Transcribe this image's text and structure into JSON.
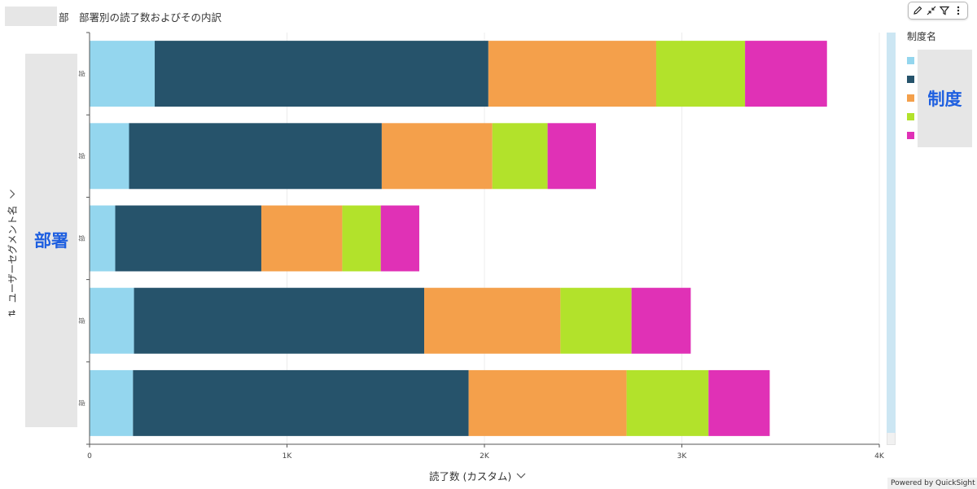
{
  "header": {
    "title": "部　部署別の読了数およびその内訳"
  },
  "toolbar": {
    "icons": [
      "pencil-icon",
      "collapse-icon",
      "filter-icon",
      "more-vertical-icon"
    ]
  },
  "y_axis": {
    "title": "ユーザーセグメント名",
    "overlay_label": "部署"
  },
  "x_axis": {
    "title": "読了数 (カスタム)"
  },
  "legend": {
    "title": "制度名",
    "overlay_label": "制度"
  },
  "footer": {
    "powered_by": "Powered by QuickSight"
  },
  "chart_data": {
    "type": "bar",
    "orientation": "horizontal",
    "stacked": true,
    "categories": [
      "部",
      "部",
      "部",
      "部",
      "部"
    ],
    "series": [
      {
        "color": "#94d6ee",
        "values": [
          330,
          200,
          130,
          225,
          220
        ]
      },
      {
        "color": "#26536b",
        "values": [
          1690,
          1280,
          740,
          1470,
          1700
        ]
      },
      {
        "color": "#f4a04b",
        "values": [
          850,
          560,
          410,
          690,
          800
        ]
      },
      {
        "color": "#b2e22b",
        "values": [
          450,
          280,
          195,
          360,
          415
        ]
      },
      {
        "color": "#e031b6",
        "values": [
          415,
          245,
          195,
          300,
          310
        ]
      }
    ],
    "xticks": [
      "0",
      "1K",
      "2K",
      "3K",
      "4K"
    ],
    "xlim": [
      0,
      4000
    ],
    "grid": true,
    "legend_position": "right"
  }
}
